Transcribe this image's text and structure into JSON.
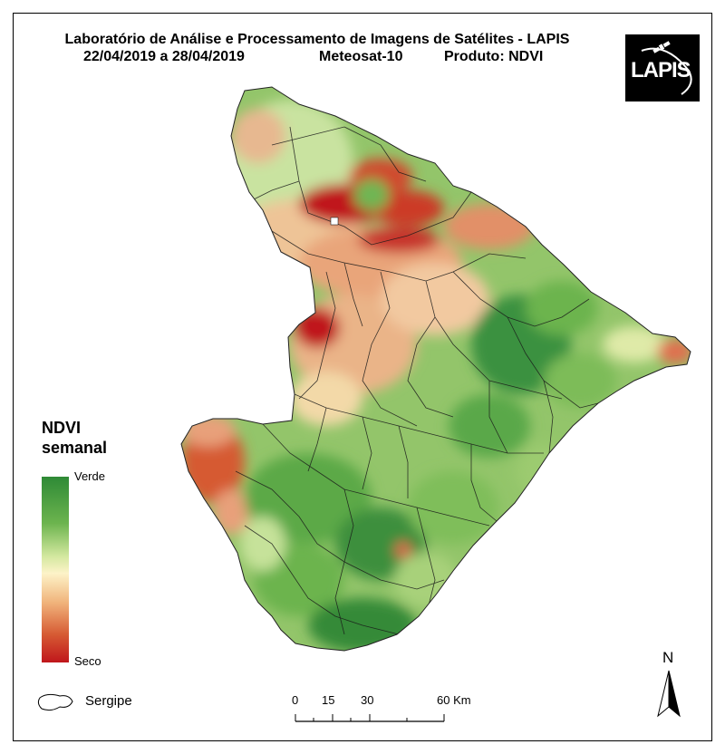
{
  "title": "Laboratório de Análise e Processamento de Imagens de Satélites - LAPIS",
  "subtitle": {
    "period": "22/04/2019  a 28/04/2019",
    "satellite": "Meteosat-10",
    "product": "Produto: NDVI"
  },
  "logo": {
    "text": "LAPIS",
    "icon": "satellite-icon"
  },
  "legend": {
    "title_line1": "NDVI",
    "title_line2": "semanal",
    "high_label": "Verde",
    "low_label": "Seco",
    "colors": [
      "#2e8a36",
      "#6cb44e",
      "#d4e8a0",
      "#fdf3c8",
      "#f0b27a",
      "#d65a33",
      "#c0161b"
    ]
  },
  "state_legend": {
    "label": "Sergipe"
  },
  "scale_bar": {
    "ticks": [
      "0",
      "15",
      "30",
      "60 Km"
    ]
  },
  "north_arrow": {
    "label": "N"
  }
}
